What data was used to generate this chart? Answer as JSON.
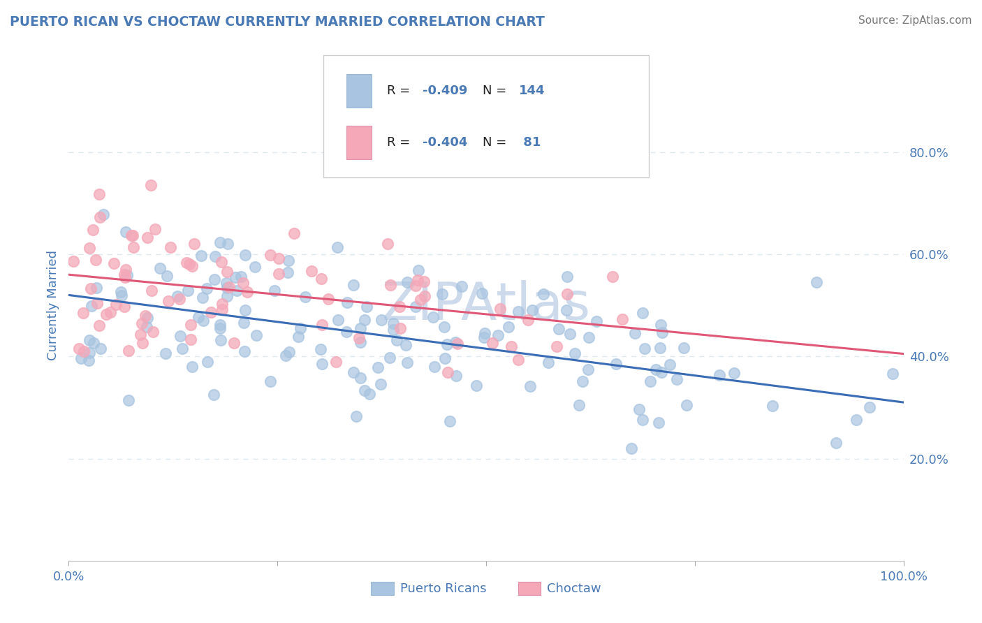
{
  "title": "PUERTO RICAN VS CHOCTAW CURRENTLY MARRIED CORRELATION CHART",
  "source_text": "Source: ZipAtlas.com",
  "ylabel": "Currently Married",
  "watermark": "ZIPAtlas",
  "legend_label1": "Puerto Ricans",
  "legend_label2": "Choctaw",
  "blue_color": "#a8c4e0",
  "pink_color": "#f4a8b8",
  "blue_line_color": "#3a6db5",
  "pink_line_color": "#e05878",
  "title_color": "#4a7ab5",
  "axis_label_color": "#4a7ab5",
  "tick_label_color": "#4a7ab5",
  "source_color": "#777777",
  "watermark_color": "#ccdaeb",
  "blue_R": -0.409,
  "blue_N": 144,
  "pink_R": -0.404,
  "pink_N": 81,
  "blue_intercept": 0.52,
  "blue_slope": -0.21,
  "pink_intercept": 0.56,
  "pink_slope": -0.155,
  "background_color": "#ffffff",
  "grid_color": "#dce8f0",
  "yticks": [
    0.2,
    0.4,
    0.6,
    0.8
  ],
  "ytick_labels": [
    "20.0%",
    "40.0%",
    "60.0%",
    "80.0%"
  ]
}
